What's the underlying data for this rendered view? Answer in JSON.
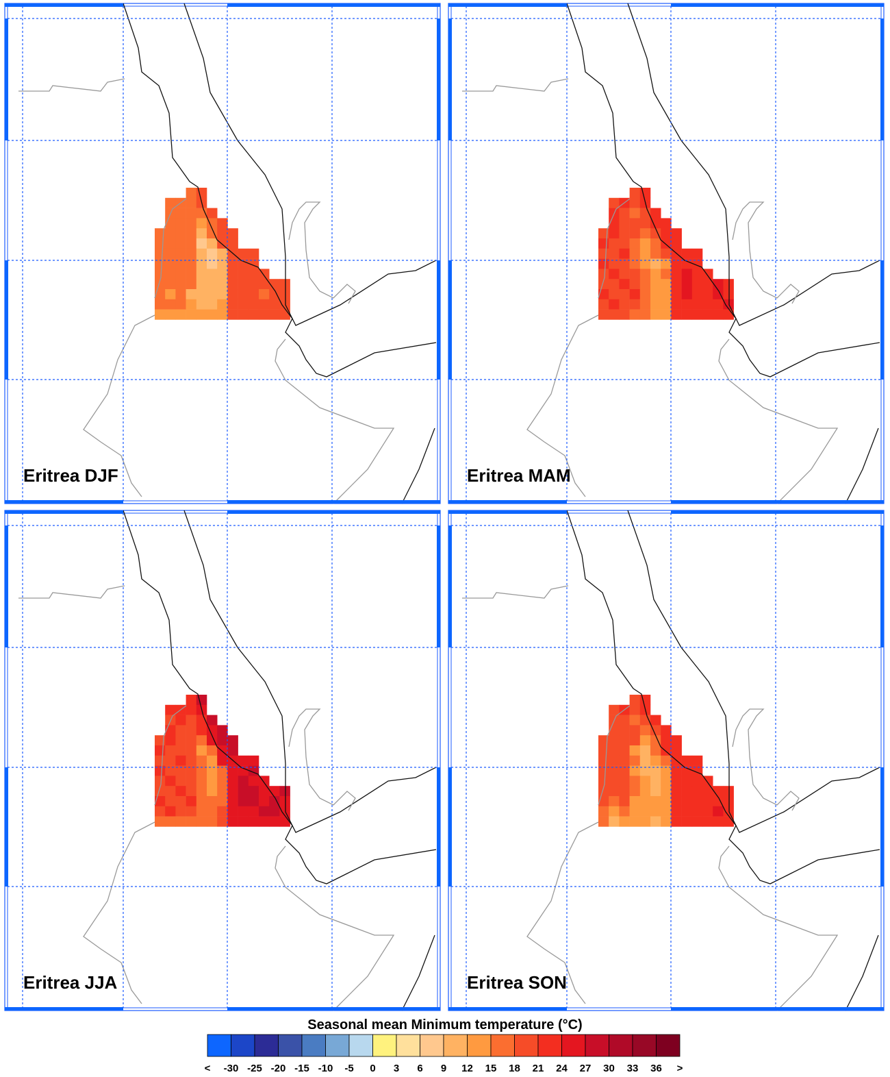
{
  "panels": [
    {
      "title": "Eritrea DJF",
      "grid": [
        [
          null,
          null,
          null,
          17,
          20,
          null,
          null,
          null,
          null,
          null,
          null,
          null,
          null
        ],
        [
          null,
          17,
          17,
          17,
          20,
          null,
          null,
          null,
          null,
          null,
          null,
          null,
          null
        ],
        [
          null,
          17,
          17,
          17,
          17,
          20,
          null,
          null,
          null,
          null,
          null,
          null,
          null
        ],
        [
          null,
          17,
          17,
          17,
          14,
          17,
          20,
          null,
          null,
          null,
          null,
          null,
          null
        ],
        [
          17,
          17,
          17,
          17,
          10,
          17,
          20,
          20,
          null,
          null,
          null,
          null,
          null
        ],
        [
          17,
          17,
          17,
          17,
          8,
          11,
          20,
          20,
          null,
          null,
          null,
          null,
          null
        ],
        [
          17,
          17,
          17,
          17,
          11,
          8,
          11,
          20,
          20,
          20,
          null,
          null,
          null
        ],
        [
          17,
          17,
          17,
          17,
          11,
          8,
          11,
          20,
          20,
          20,
          null,
          null,
          null
        ],
        [
          17,
          17,
          17,
          17,
          11,
          11,
          11,
          20,
          20,
          20,
          20,
          null,
          null
        ],
        [
          17,
          17,
          17,
          17,
          11,
          11,
          11,
          20,
          20,
          20,
          20,
          20,
          20
        ],
        [
          17,
          14,
          17,
          11,
          11,
          11,
          11,
          20,
          20,
          20,
          17,
          20,
          20
        ],
        [
          17,
          17,
          17,
          14,
          11,
          11,
          14,
          20,
          20,
          20,
          20,
          20,
          20
        ],
        [
          14,
          14,
          14,
          14,
          14,
          14,
          14,
          20,
          20,
          20,
          20,
          20,
          20
        ]
      ]
    },
    {
      "title": "Eritrea MAM",
      "grid": [
        [
          null,
          null,
          null,
          20,
          23,
          null,
          null,
          null,
          null,
          null,
          null,
          null,
          null
        ],
        [
          null,
          20,
          23,
          20,
          23,
          null,
          null,
          null,
          null,
          null,
          null,
          null,
          null
        ],
        [
          null,
          23,
          20,
          17,
          20,
          23,
          null,
          null,
          null,
          null,
          null,
          null,
          null
        ],
        [
          null,
          23,
          20,
          20,
          20,
          23,
          23,
          null,
          null,
          null,
          null,
          null,
          null
        ],
        [
          20,
          23,
          20,
          20,
          17,
          20,
          23,
          23,
          null,
          null,
          null,
          null,
          null
        ],
        [
          23,
          20,
          20,
          17,
          14,
          17,
          23,
          23,
          null,
          null,
          null,
          null,
          null
        ],
        [
          20,
          20,
          23,
          17,
          14,
          17,
          20,
          23,
          23,
          23,
          null,
          null,
          null
        ],
        [
          23,
          20,
          20,
          17,
          14,
          11,
          14,
          23,
          23,
          23,
          null,
          null,
          null
        ],
        [
          20,
          23,
          20,
          20,
          17,
          14,
          17,
          23,
          26,
          23,
          23,
          null,
          null
        ],
        [
          20,
          20,
          23,
          20,
          17,
          14,
          14,
          23,
          26,
          23,
          23,
          26,
          23
        ],
        [
          23,
          20,
          20,
          23,
          17,
          14,
          14,
          23,
          26,
          23,
          23,
          26,
          23
        ],
        [
          20,
          23,
          20,
          20,
          17,
          14,
          14,
          23,
          23,
          23,
          23,
          23,
          26
        ],
        [
          20,
          20,
          20,
          17,
          17,
          14,
          14,
          23,
          23,
          23,
          23,
          23,
          23
        ]
      ]
    },
    {
      "title": "Eritrea JJA",
      "grid": [
        [
          null,
          null,
          null,
          23,
          29,
          null,
          null,
          null,
          null,
          null,
          null,
          null,
          null
        ],
        [
          null,
          23,
          23,
          23,
          26,
          null,
          null,
          null,
          null,
          null,
          null,
          null,
          null
        ],
        [
          null,
          20,
          23,
          20,
          23,
          29,
          null,
          null,
          null,
          null,
          null,
          null,
          null
        ],
        [
          null,
          23,
          20,
          20,
          23,
          26,
          29,
          null,
          null,
          null,
          null,
          null,
          null
        ],
        [
          20,
          23,
          20,
          20,
          17,
          26,
          29,
          29,
          null,
          null,
          null,
          null,
          null
        ],
        [
          23,
          20,
          20,
          20,
          14,
          17,
          26,
          29,
          null,
          null,
          null,
          null,
          null
        ],
        [
          20,
          20,
          23,
          20,
          17,
          14,
          26,
          26,
          26,
          26,
          null,
          null,
          null
        ],
        [
          23,
          20,
          20,
          20,
          17,
          14,
          17,
          26,
          26,
          29,
          null,
          null,
          null
        ],
        [
          20,
          23,
          20,
          20,
          17,
          14,
          17,
          26,
          29,
          26,
          26,
          null,
          null
        ],
        [
          20,
          20,
          23,
          20,
          17,
          14,
          17,
          26,
          29,
          29,
          26,
          26,
          29
        ],
        [
          23,
          20,
          20,
          23,
          17,
          17,
          17,
          26,
          29,
          29,
          26,
          29,
          26
        ],
        [
          20,
          23,
          20,
          20,
          17,
          17,
          20,
          26,
          26,
          26,
          29,
          29,
          26
        ],
        [
          17,
          17,
          17,
          17,
          17,
          17,
          20,
          26,
          26,
          26,
          26,
          26,
          26
        ]
      ]
    },
    {
      "title": "Eritrea SON",
      "grid": [
        [
          null,
          null,
          null,
          20,
          23,
          null,
          null,
          null,
          null,
          null,
          null,
          null,
          null
        ],
        [
          null,
          20,
          23,
          20,
          23,
          null,
          null,
          null,
          null,
          null,
          null,
          null,
          null
        ],
        [
          null,
          20,
          20,
          17,
          20,
          23,
          null,
          null,
          null,
          null,
          null,
          null,
          null
        ],
        [
          null,
          20,
          20,
          20,
          17,
          20,
          23,
          null,
          null,
          null,
          null,
          null,
          null
        ],
        [
          20,
          20,
          20,
          20,
          14,
          17,
          23,
          23,
          null,
          null,
          null,
          null,
          null
        ],
        [
          20,
          20,
          20,
          14,
          11,
          17,
          23,
          23,
          null,
          null,
          null,
          null,
          null
        ],
        [
          20,
          20,
          20,
          17,
          11,
          14,
          17,
          23,
          23,
          23,
          null,
          null,
          null
        ],
        [
          20,
          20,
          20,
          14,
          11,
          11,
          14,
          23,
          23,
          23,
          null,
          null,
          null
        ],
        [
          20,
          20,
          20,
          17,
          14,
          11,
          14,
          23,
          23,
          23,
          23,
          null,
          null
        ],
        [
          20,
          20,
          20,
          17,
          14,
          11,
          14,
          23,
          23,
          23,
          23,
          23,
          23
        ],
        [
          20,
          17,
          20,
          14,
          14,
          14,
          14,
          23,
          23,
          23,
          23,
          23,
          23
        ],
        [
          17,
          14,
          17,
          14,
          14,
          14,
          14,
          23,
          23,
          23,
          23,
          26,
          23
        ],
        [
          17,
          11,
          14,
          14,
          14,
          11,
          14,
          23,
          23,
          23,
          23,
          23,
          23
        ]
      ]
    }
  ],
  "colorbar": {
    "title": "Seasonal mean Minimum temperature (°C)",
    "labels": [
      "<",
      -30,
      -25,
      -20,
      -15,
      -10,
      -5,
      0,
      3,
      6,
      9,
      12,
      15,
      18,
      21,
      24,
      27,
      30,
      33,
      36,
      ">"
    ],
    "colors": [
      "#0d66ff",
      "#1c46c8",
      "#2c2c96",
      "#3a52a8",
      "#4a7cc2",
      "#78a8d6",
      "#b8d8ee",
      "#fff27e",
      "#ffe09c",
      "#ffc88e",
      "#ffb262",
      "#ff9a40",
      "#fb6e30",
      "#f64c28",
      "#f32e20",
      "#e41620",
      "#c80e28",
      "#b00a28",
      "#980826",
      "#7e0020"
    ]
  }
}
